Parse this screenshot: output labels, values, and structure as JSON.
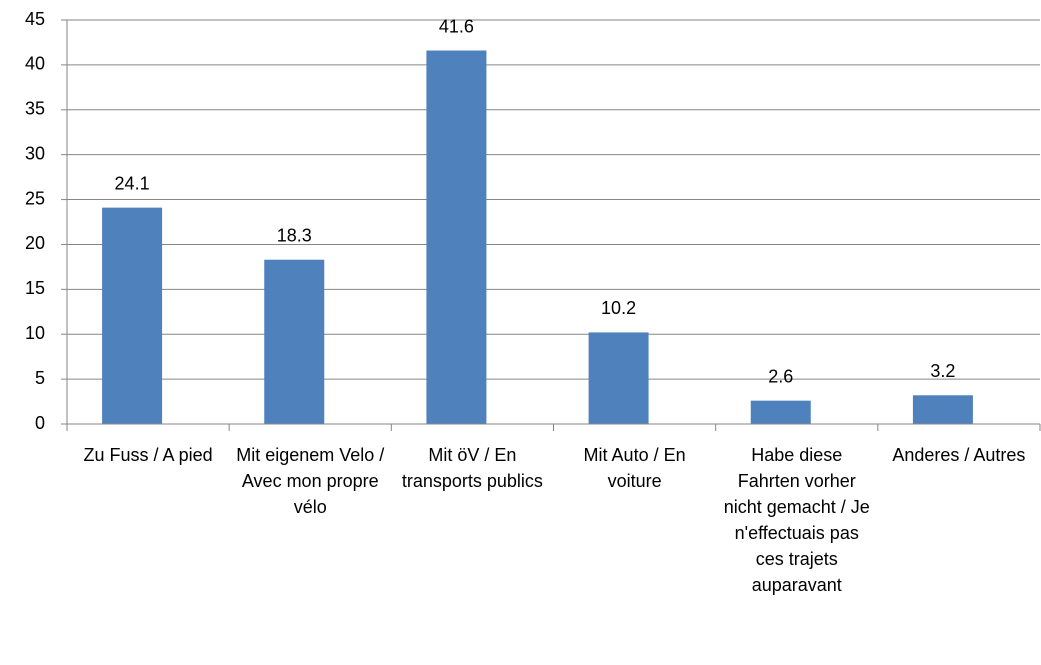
{
  "chart_data": {
    "type": "bar",
    "categories": [
      "Zu Fuss / A pied",
      "Mit eigenem Velo / Avec mon propre vélo",
      "Mit öV / En transports publics",
      "Mit Auto / En voiture",
      "Habe diese Fahrten vorher nicht gemacht / Je n'effectuais pas ces trajets auparavant",
      "Anderes / Autres"
    ],
    "values": [
      24.1,
      18.3,
      41.6,
      10.2,
      2.6,
      3.2
    ],
    "color": "#4f81bd",
    "ylim": [
      0,
      45
    ],
    "yticks": [
      0,
      5,
      10,
      15,
      20,
      25,
      30,
      35,
      40,
      45
    ],
    "grid": true
  }
}
